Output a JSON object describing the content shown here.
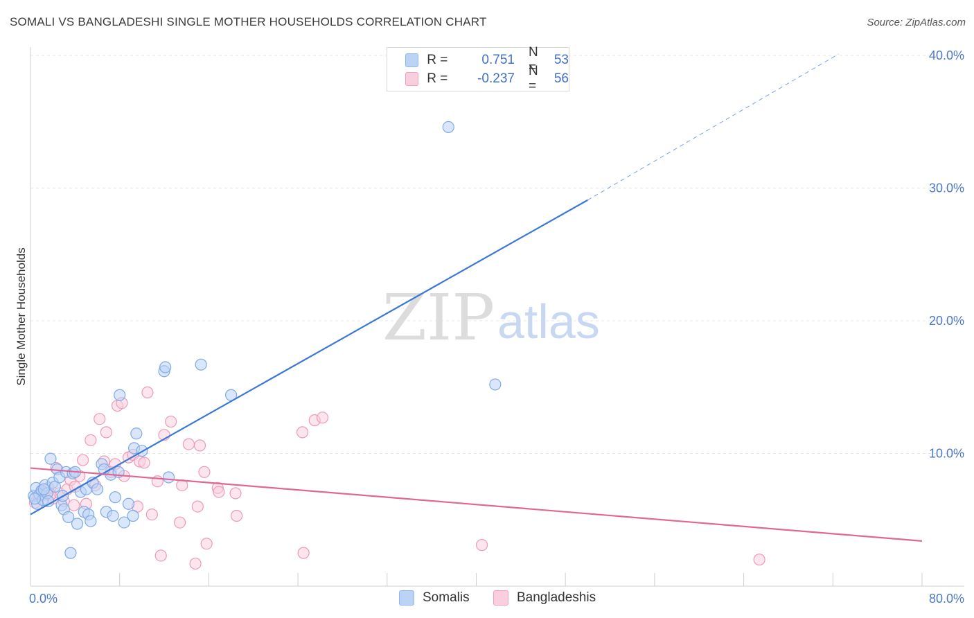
{
  "title": "SOMALI VS BANGLADESHI SINGLE MOTHER HOUSEHOLDS CORRELATION CHART",
  "source": "Source: ZipAtlas.com",
  "watermark": {
    "zip": "ZIP",
    "atlas": "atlas"
  },
  "legend": {
    "series": [
      {
        "r_label": "R =",
        "r_value": "0.751",
        "n_label": "N =",
        "n_value": "53",
        "color": "#8fb4ee",
        "fill": "#bcd3f5"
      },
      {
        "r_label": "R =",
        "r_value": "-0.237",
        "n_label": "N =",
        "n_value": "56",
        "color": "#f0a0bc",
        "fill": "#f9cfdd"
      }
    ]
  },
  "bottom_legend": [
    "Somalis",
    "Bangladeshis"
  ],
  "chart_data": {
    "type": "scatter",
    "title": "SOMALI VS BANGLADESHI SINGLE MOTHER HOUSEHOLDS CORRELATION CHART",
    "xlabel": "",
    "ylabel": "Single Mother Households",
    "xlim": [
      0,
      80
    ],
    "ylim": [
      0,
      42
    ],
    "x_tick_labels": [
      "0.0%",
      "80.0%"
    ],
    "y_ticks": [
      10,
      20,
      30,
      40
    ],
    "y_tick_labels": [
      "10.0%",
      "20.0%",
      "30.0%",
      "40.0%"
    ],
    "grid": true,
    "series": [
      {
        "name": "Somalis",
        "color": "#3a78d8",
        "point_fill": "#bcd3f5",
        "point_stroke": "#7fa8e6",
        "trend": {
          "x0": 0,
          "y0": 5.4,
          "x1": 50,
          "y1": 29.1,
          "dash_x1": 72.5,
          "dash_y1": 40.1
        },
        "points": [
          [
            0.3,
            6.8
          ],
          [
            0.5,
            7.4
          ],
          [
            0.6,
            6.2
          ],
          [
            0.8,
            6.9
          ],
          [
            1.0,
            7.2
          ],
          [
            1.1,
            6.5
          ],
          [
            1.3,
            7.6
          ],
          [
            1.5,
            7.0
          ],
          [
            1.6,
            6.4
          ],
          [
            1.8,
            9.6
          ],
          [
            2.0,
            7.8
          ],
          [
            2.2,
            7.5
          ],
          [
            2.4,
            8.8
          ],
          [
            2.6,
            8.2
          ],
          [
            2.8,
            6.1
          ],
          [
            3.0,
            5.8
          ],
          [
            3.2,
            8.6
          ],
          [
            3.4,
            5.2
          ],
          [
            3.6,
            2.5
          ],
          [
            3.8,
            8.5
          ],
          [
            4.0,
            8.6
          ],
          [
            4.2,
            4.7
          ],
          [
            4.5,
            7.1
          ],
          [
            4.8,
            5.6
          ],
          [
            5.0,
            7.3
          ],
          [
            5.2,
            5.4
          ],
          [
            5.4,
            4.9
          ],
          [
            5.6,
            7.8
          ],
          [
            6.0,
            7.3
          ],
          [
            6.4,
            9.2
          ],
          [
            6.8,
            5.6
          ],
          [
            7.2,
            8.4
          ],
          [
            7.4,
            5.3
          ],
          [
            7.6,
            6.7
          ],
          [
            7.9,
            8.6
          ],
          [
            8.0,
            14.4
          ],
          [
            8.4,
            4.8
          ],
          [
            8.8,
            6.2
          ],
          [
            9.2,
            5.3
          ],
          [
            9.3,
            10.4
          ],
          [
            9.5,
            11.5
          ],
          [
            10.0,
            10.2
          ],
          [
            12.0,
            16.2
          ],
          [
            12.1,
            16.5
          ],
          [
            12.4,
            8.2
          ],
          [
            15.3,
            16.7
          ],
          [
            18.0,
            14.4
          ],
          [
            37.5,
            34.6
          ],
          [
            41.7,
            15.2
          ],
          [
            0.4,
            6.6
          ],
          [
            1.2,
            7.3
          ],
          [
            2.9,
            6.8
          ],
          [
            6.6,
            8.8
          ]
        ]
      },
      {
        "name": "Bangladeshis",
        "color": "#e06694",
        "point_fill": "#f9cfdd",
        "point_stroke": "#eb9ab8",
        "trend": {
          "x0": 0,
          "y0": 8.9,
          "x1": 80,
          "y1": 3.4
        },
        "points": [
          [
            0.4,
            6.3
          ],
          [
            0.7,
            6.8
          ],
          [
            1.0,
            7.1
          ],
          [
            1.3,
            6.9
          ],
          [
            1.6,
            7.4
          ],
          [
            2.0,
            6.6
          ],
          [
            2.3,
            8.9
          ],
          [
            2.6,
            7.0
          ],
          [
            3.0,
            6.4
          ],
          [
            3.3,
            7.3
          ],
          [
            3.6,
            8.0
          ],
          [
            4.0,
            7.5
          ],
          [
            4.4,
            8.3
          ],
          [
            4.7,
            9.5
          ],
          [
            5.0,
            6.2
          ],
          [
            5.4,
            11.0
          ],
          [
            5.8,
            7.6
          ],
          [
            6.2,
            12.6
          ],
          [
            6.6,
            9.4
          ],
          [
            6.8,
            11.6
          ],
          [
            7.2,
            8.6
          ],
          [
            7.6,
            9.2
          ],
          [
            7.8,
            13.6
          ],
          [
            8.2,
            13.8
          ],
          [
            8.4,
            8.3
          ],
          [
            8.8,
            9.7
          ],
          [
            9.2,
            9.9
          ],
          [
            9.6,
            6.0
          ],
          [
            9.8,
            9.4
          ],
          [
            10.2,
            9.3
          ],
          [
            10.5,
            14.6
          ],
          [
            10.9,
            5.4
          ],
          [
            11.4,
            7.9
          ],
          [
            11.7,
            2.3
          ],
          [
            12.0,
            11.4
          ],
          [
            12.6,
            12.4
          ],
          [
            13.4,
            4.8
          ],
          [
            13.6,
            7.6
          ],
          [
            14.2,
            10.7
          ],
          [
            14.8,
            1.7
          ],
          [
            15.0,
            6.0
          ],
          [
            15.2,
            10.6
          ],
          [
            15.6,
            8.6
          ],
          [
            15.8,
            3.2
          ],
          [
            16.8,
            7.4
          ],
          [
            16.9,
            7.1
          ],
          [
            18.4,
            7.0
          ],
          [
            18.5,
            5.3
          ],
          [
            24.4,
            11.6
          ],
          [
            24.5,
            2.5
          ],
          [
            25.5,
            12.5
          ],
          [
            26.2,
            12.7
          ],
          [
            40.5,
            3.1
          ],
          [
            65.4,
            2.0
          ],
          [
            1.8,
            6.9
          ],
          [
            3.9,
            6.1
          ]
        ]
      }
    ]
  }
}
